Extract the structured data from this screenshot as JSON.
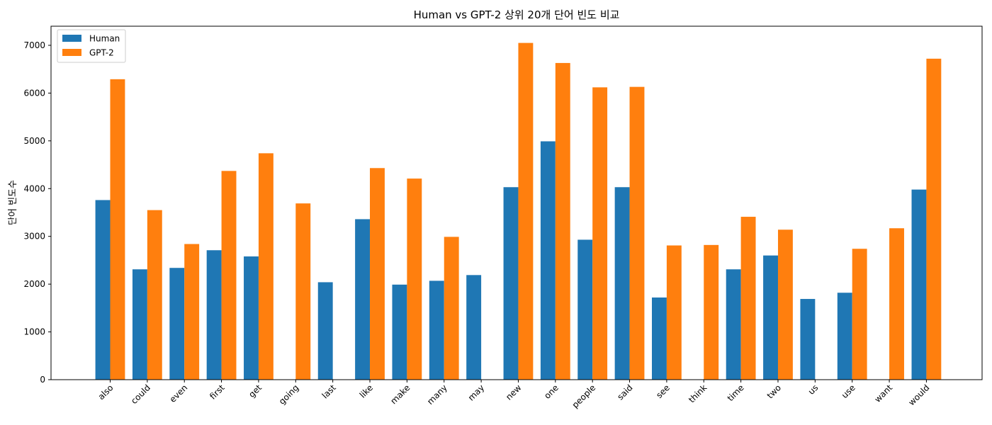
{
  "chart_data": {
    "type": "bar",
    "title": "Human vs GPT-2 상위 20개 단어 빈도 비교",
    "xlabel": "",
    "ylabel": "단어 빈도수",
    "ylim": [
      0,
      7400
    ],
    "yticks": [
      0,
      1000,
      2000,
      3000,
      4000,
      5000,
      6000,
      7000
    ],
    "grid": false,
    "legend_position": "top-left",
    "categories": [
      "also",
      "could",
      "even",
      "first",
      "get",
      "going",
      "last",
      "like",
      "make",
      "many",
      "may",
      "new",
      "one",
      "people",
      "said",
      "see",
      "think",
      "time",
      "two",
      "us",
      "use",
      "want",
      "would"
    ],
    "series": [
      {
        "name": "Human",
        "color": "#1f77b4",
        "values": [
          3760,
          2310,
          2340,
          2710,
          2580,
          0,
          2040,
          3360,
          1990,
          2070,
          2190,
          4030,
          4990,
          2930,
          4030,
          1720,
          0,
          2310,
          2600,
          1690,
          1820,
          0,
          3980
        ]
      },
      {
        "name": "GPT-2",
        "color": "#ff7f0e",
        "values": [
          6290,
          3550,
          2840,
          4370,
          4740,
          3690,
          0,
          4430,
          4210,
          2990,
          0,
          7050,
          6630,
          6120,
          6130,
          2810,
          2820,
          3410,
          3140,
          0,
          2740,
          3170,
          6720
        ]
      }
    ]
  }
}
